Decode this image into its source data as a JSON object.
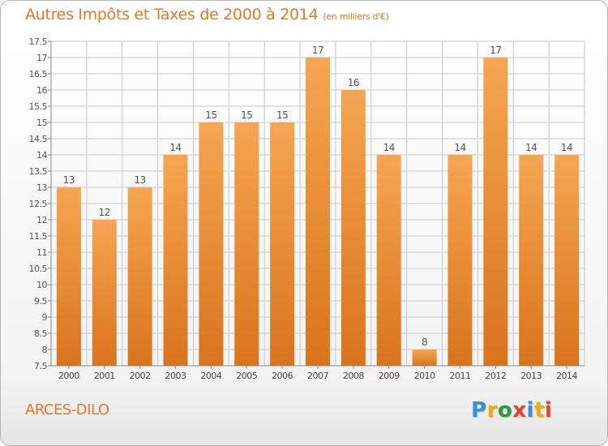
{
  "header": {
    "title": "Autres Impôts et Taxes de 2000 à 2014",
    "subtitle": "(en milliers d'€)"
  },
  "footer": {
    "commune": "ARCES-DILO",
    "logo_text": "Proxiti",
    "logo_colors": [
      "#3a8fd8",
      "#e8b000",
      "#2e9b3a",
      "#e8442c",
      "#3a8fd8",
      "#e8b000",
      "#e8442c"
    ]
  },
  "colors": {
    "accent": "#e07b2a",
    "bar_light": "#f6a552",
    "bar_dark": "#d9741c",
    "grid": "#c8c8c8"
  },
  "chart_data": {
    "type": "bar",
    "title": "Autres Impôts et Taxes de 2000 à 2014",
    "subtitle": "(en milliers d'€)",
    "categories": [
      "2000",
      "2001",
      "2002",
      "2003",
      "2004",
      "2005",
      "2006",
      "2007",
      "2008",
      "2009",
      "2010",
      "2011",
      "2012",
      "2013",
      "2014"
    ],
    "values": [
      13,
      12,
      13,
      14,
      15,
      15,
      15,
      17,
      16,
      14,
      8,
      14,
      17,
      14,
      14
    ],
    "data_labels": [
      "13",
      "12",
      "13",
      "14",
      "15",
      "15",
      "15",
      "17",
      "16",
      "14",
      "8",
      "14",
      "17",
      "14",
      "14"
    ],
    "ylim": [
      7.5,
      17.5
    ],
    "yticks": [
      "7.5",
      "8",
      "8.5",
      "9",
      "9.5",
      "10",
      "10.5",
      "11",
      "11.5",
      "12",
      "12.5",
      "13",
      "13.5",
      "14",
      "14.5",
      "15",
      "15.5",
      "16",
      "16.5",
      "17",
      "17.5"
    ],
    "grid": true,
    "xlabel": "",
    "ylabel": ""
  }
}
